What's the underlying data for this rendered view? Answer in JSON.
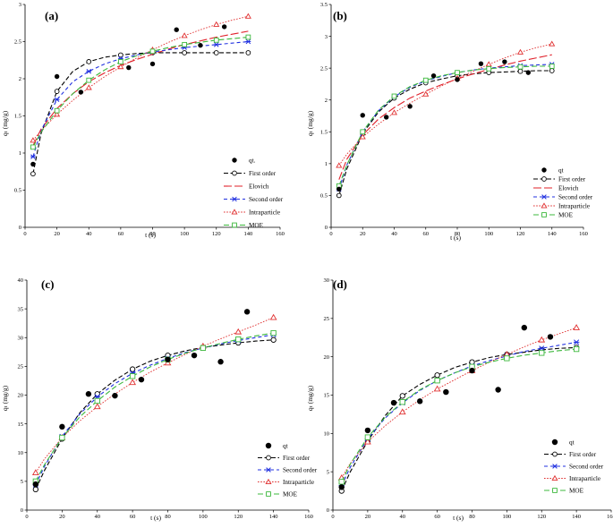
{
  "figure": {
    "description_panels": [
      "a",
      "b",
      "c",
      "d"
    ]
  },
  "chart_data": [
    {
      "type": "scatter",
      "panel_label": "(a)",
      "xlabel": "t (s)",
      "ylabel": "qₜ (mg/g)",
      "xlim": [
        0,
        160
      ],
      "ylim": [
        0,
        3
      ],
      "xticks": [
        0,
        20,
        40,
        60,
        80,
        100,
        120,
        140,
        160
      ],
      "yticks": [
        0,
        0.5,
        1,
        1.5,
        2,
        2.5,
        3
      ],
      "x_tick_labels": [
        "0",
        "20",
        "40",
        "60",
        "80",
        "100",
        "120",
        "140",
        "160"
      ],
      "y_tick_labels": [
        "0",
        "0.5",
        "1",
        "1.5",
        "2",
        "2.5",
        "3"
      ],
      "legend_position": "bottom-right",
      "points": {
        "name": "qt.",
        "x": [
          5,
          20,
          35,
          65,
          80,
          95,
          110,
          125
        ],
        "y": [
          0.85,
          2.03,
          1.82,
          2.15,
          2.2,
          2.66,
          2.45,
          2.7
        ]
      },
      "series": [
        {
          "name": "First order",
          "style": "first",
          "x": [
            5,
            10,
            20,
            30,
            40,
            50,
            60,
            70,
            80,
            90,
            100,
            110,
            120,
            130,
            140
          ],
          "y": [
            0.72,
            1.26,
            1.83,
            2.1,
            2.23,
            2.29,
            2.32,
            2.34,
            2.35,
            2.35,
            2.35,
            2.35,
            2.35,
            2.35,
            2.35
          ]
        },
        {
          "name": "Elovich",
          "style": "elovich",
          "x": [
            5,
            10,
            20,
            30,
            40,
            50,
            60,
            70,
            80,
            90,
            100,
            110,
            120,
            130,
            140
          ],
          "y": [
            1.1,
            1.32,
            1.6,
            1.8,
            1.96,
            2.08,
            2.18,
            2.26,
            2.33,
            2.4,
            2.46,
            2.51,
            2.56,
            2.6,
            2.64
          ]
        },
        {
          "name": "Second order",
          "style": "second",
          "x": [
            5,
            10,
            20,
            30,
            40,
            50,
            60,
            70,
            80,
            90,
            100,
            110,
            120,
            130,
            140
          ],
          "y": [
            0.95,
            1.3,
            1.72,
            1.96,
            2.1,
            2.2,
            2.27,
            2.32,
            2.36,
            2.39,
            2.42,
            2.44,
            2.46,
            2.48,
            2.5
          ]
        },
        {
          "name": "Intraparticle",
          "style": "intra",
          "x": [
            5,
            10,
            20,
            30,
            40,
            50,
            60,
            70,
            80,
            90,
            100,
            110,
            120,
            130,
            140
          ],
          "y": [
            1.17,
            1.3,
            1.52,
            1.71,
            1.88,
            2.03,
            2.16,
            2.28,
            2.39,
            2.49,
            2.58,
            2.66,
            2.73,
            2.79,
            2.84
          ]
        },
        {
          "name": "MOE",
          "style": "moe",
          "x": [
            5,
            10,
            20,
            30,
            40,
            50,
            60,
            70,
            80,
            90,
            100,
            110,
            120,
            130,
            140
          ],
          "y": [
            1.08,
            1.28,
            1.57,
            1.8,
            1.98,
            2.12,
            2.23,
            2.31,
            2.37,
            2.42,
            2.46,
            2.49,
            2.52,
            2.54,
            2.56
          ]
        }
      ]
    },
    {
      "type": "scatter",
      "panel_label": "(b)",
      "xlabel": "t (s)",
      "ylabel": "qₜ (mg/g)",
      "xlim": [
        0,
        160
      ],
      "ylim": [
        0,
        3.5
      ],
      "xticks": [
        0,
        20,
        40,
        60,
        80,
        100,
        120,
        140,
        160
      ],
      "yticks": [
        0,
        0.5,
        1,
        1.5,
        2,
        2.5,
        3,
        3.5
      ],
      "x_tick_labels": [
        "0",
        "20",
        "40",
        "60",
        "80",
        "100",
        "120",
        "140",
        "160"
      ],
      "y_tick_labels": [
        "0",
        "0.5",
        "1",
        "1.5",
        "2",
        "2.5",
        "3",
        "3.5"
      ],
      "legend_position": "bottom-right",
      "points": {
        "name": "qt",
        "x": [
          5,
          20,
          35,
          50,
          65,
          80,
          95,
          110,
          125
        ],
        "y": [
          0.6,
          1.76,
          1.73,
          1.9,
          2.38,
          2.32,
          2.57,
          2.6,
          2.43
        ]
      },
      "series": [
        {
          "name": "First order",
          "style": "first",
          "x": [
            5,
            10,
            20,
            30,
            40,
            50,
            60,
            70,
            80,
            90,
            100,
            110,
            120,
            130,
            140
          ],
          "y": [
            0.5,
            0.92,
            1.47,
            1.81,
            2.03,
            2.17,
            2.27,
            2.33,
            2.38,
            2.41,
            2.43,
            2.44,
            2.45,
            2.46,
            2.46
          ]
        },
        {
          "name": "Elovich",
          "style": "elovich",
          "x": [
            5,
            10,
            20,
            30,
            40,
            50,
            60,
            70,
            80,
            90,
            100,
            110,
            120,
            130,
            140
          ],
          "y": [
            0.75,
            1.07,
            1.45,
            1.7,
            1.88,
            2.03,
            2.14,
            2.24,
            2.33,
            2.41,
            2.48,
            2.55,
            2.61,
            2.66,
            2.71
          ]
        },
        {
          "name": "Second order",
          "style": "second",
          "x": [
            5,
            10,
            20,
            30,
            40,
            50,
            60,
            70,
            80,
            90,
            100,
            110,
            120,
            130,
            140
          ],
          "y": [
            0.6,
            0.98,
            1.5,
            1.83,
            2.05,
            2.2,
            2.3,
            2.37,
            2.43,
            2.47,
            2.5,
            2.52,
            2.54,
            2.55,
            2.56
          ]
        },
        {
          "name": "Intraparticle",
          "style": "intra",
          "x": [
            5,
            10,
            20,
            30,
            40,
            50,
            60,
            70,
            80,
            90,
            100,
            110,
            120,
            130,
            140
          ],
          "y": [
            0.97,
            1.15,
            1.42,
            1.62,
            1.8,
            1.95,
            2.09,
            2.22,
            2.34,
            2.45,
            2.56,
            2.66,
            2.75,
            2.82,
            2.88
          ]
        },
        {
          "name": "MOE",
          "style": "moe",
          "x": [
            5,
            10,
            20,
            30,
            40,
            50,
            60,
            70,
            80,
            90,
            100,
            110,
            120,
            130,
            140
          ],
          "y": [
            0.65,
            0.98,
            1.5,
            1.84,
            2.06,
            2.21,
            2.31,
            2.38,
            2.43,
            2.47,
            2.49,
            2.51,
            2.52,
            2.53,
            2.53
          ]
        }
      ]
    },
    {
      "type": "scatter",
      "panel_label": "(c)",
      "xlabel": "t (s)",
      "ylabel": "qₜ (mg/g)",
      "xlim": [
        0,
        160
      ],
      "ylim": [
        0,
        40
      ],
      "xticks": [
        0,
        20,
        40,
        60,
        80,
        100,
        120,
        140,
        160
      ],
      "yticks": [
        0,
        5,
        10,
        15,
        20,
        25,
        30,
        35,
        40
      ],
      "x_tick_labels": [
        "0",
        "20",
        "40",
        "60",
        "80",
        "100",
        "120",
        "140",
        "160"
      ],
      "y_tick_labels": [
        "0",
        "5",
        "10",
        "15",
        "20",
        "25",
        "30",
        "35",
        "40"
      ],
      "legend_position": "bottom-right",
      "points": {
        "name": "qt",
        "x": [
          5,
          20,
          35,
          50,
          65,
          80,
          95,
          110,
          125
        ],
        "y": [
          4.5,
          14.5,
          20.2,
          19.9,
          22.7,
          26.2,
          26.9,
          25.8,
          34.5
        ]
      },
      "series": [
        {
          "name": "First order",
          "style": "first",
          "x": [
            5,
            10,
            20,
            30,
            40,
            50,
            60,
            70,
            80,
            90,
            100,
            110,
            120,
            130,
            140
          ],
          "y": [
            3.6,
            6.9,
            12.4,
            16.9,
            20.2,
            22.6,
            24.5,
            25.9,
            26.9,
            27.7,
            28.3,
            28.7,
            29.1,
            29.4,
            29.6
          ]
        },
        {
          "name": "Second order",
          "style": "second",
          "x": [
            5,
            10,
            20,
            30,
            40,
            50,
            60,
            70,
            80,
            90,
            100,
            110,
            120,
            130,
            140
          ],
          "y": [
            4.4,
            7.6,
            12.8,
            16.7,
            19.7,
            22.0,
            23.8,
            25.2,
            26.4,
            27.4,
            28.2,
            28.9,
            29.5,
            30.0,
            30.5
          ]
        },
        {
          "name": "Intraparticle",
          "style": "intra",
          "x": [
            5,
            10,
            20,
            30,
            40,
            50,
            60,
            70,
            80,
            90,
            100,
            110,
            120,
            130,
            140
          ],
          "y": [
            6.5,
            8.9,
            12.6,
            15.5,
            18.0,
            20.2,
            22.2,
            24.0,
            25.6,
            27.1,
            28.5,
            29.8,
            31.0,
            32.2,
            33.5
          ]
        },
        {
          "name": "MOE",
          "style": "moe",
          "x": [
            5,
            10,
            20,
            30,
            40,
            50,
            60,
            70,
            80,
            90,
            100,
            110,
            120,
            130,
            140
          ],
          "y": [
            5.0,
            7.9,
            12.6,
            16.2,
            19.0,
            21.4,
            23.3,
            24.9,
            26.2,
            27.3,
            28.2,
            29.0,
            29.7,
            30.3,
            30.8
          ]
        }
      ]
    },
    {
      "type": "scatter",
      "panel_label": "(d)",
      "xlabel": "t (s)",
      "ylabel": "qₜ (mg/g)",
      "xlim": [
        0,
        160
      ],
      "ylim": [
        0,
        30
      ],
      "xticks": [
        0,
        20,
        40,
        60,
        80,
        100,
        120,
        140,
        160
      ],
      "yticks": [
        0,
        5,
        10,
        15,
        20,
        25,
        30
      ],
      "x_tick_labels": [
        "0",
        "20",
        "40",
        "60",
        "80",
        "100",
        "120",
        "140",
        "160"
      ],
      "y_tick_labels": [
        "0",
        "5",
        "10",
        "15",
        "20",
        "25",
        "30"
      ],
      "legend_position": "bottom-right",
      "points": {
        "name": "qt",
        "x": [
          5,
          20,
          35,
          50,
          65,
          80,
          95,
          110,
          125
        ],
        "y": [
          3.0,
          10.4,
          14.0,
          14.2,
          15.4,
          18.2,
          15.7,
          23.8,
          22.6
        ]
      },
      "series": [
        {
          "name": "First order",
          "style": "first",
          "x": [
            5,
            10,
            20,
            30,
            40,
            50,
            60,
            70,
            80,
            90,
            100,
            110,
            120,
            130,
            140
          ],
          "y": [
            2.5,
            5.0,
            9.0,
            12.3,
            14.9,
            16.4,
            17.6,
            18.6,
            19.3,
            19.9,
            20.3,
            20.6,
            20.9,
            21.1,
            21.2
          ]
        },
        {
          "name": "Second order",
          "style": "second",
          "x": [
            5,
            10,
            20,
            30,
            40,
            50,
            60,
            70,
            80,
            90,
            100,
            110,
            120,
            130,
            140
          ],
          "y": [
            3.2,
            5.6,
            9.3,
            12.0,
            14.0,
            15.6,
            16.9,
            17.9,
            18.8,
            19.5,
            20.1,
            20.7,
            21.1,
            21.5,
            21.9
          ]
        },
        {
          "name": "Intraparticle",
          "style": "intra",
          "x": [
            5,
            10,
            20,
            30,
            40,
            50,
            60,
            70,
            80,
            90,
            100,
            110,
            120,
            130,
            140
          ],
          "y": [
            4.2,
            6.1,
            8.9,
            11.0,
            12.8,
            14.4,
            15.8,
            17.0,
            18.2,
            19.3,
            20.3,
            21.3,
            22.2,
            23.0,
            23.8
          ]
        },
        {
          "name": "MOE",
          "style": "moe",
          "x": [
            5,
            10,
            20,
            30,
            40,
            50,
            60,
            70,
            80,
            90,
            100,
            110,
            120,
            130,
            140
          ],
          "y": [
            3.7,
            6.0,
            9.5,
            12.1,
            14.1,
            15.7,
            16.9,
            17.9,
            18.7,
            19.3,
            19.8,
            20.2,
            20.5,
            20.8,
            21.0
          ]
        }
      ]
    }
  ],
  "styles": {
    "point_color": "#000000",
    "first": {
      "color": "#000000",
      "marker": "circle-hollow"
    },
    "elovich": {
      "color": "#e0202a",
      "marker": "none"
    },
    "second": {
      "color": "#2030e0",
      "marker": "x"
    },
    "intra": {
      "color": "#e03030",
      "marker": "triangle-hollow"
    },
    "moe": {
      "color": "#3cb83c",
      "marker": "square-hollow"
    }
  }
}
